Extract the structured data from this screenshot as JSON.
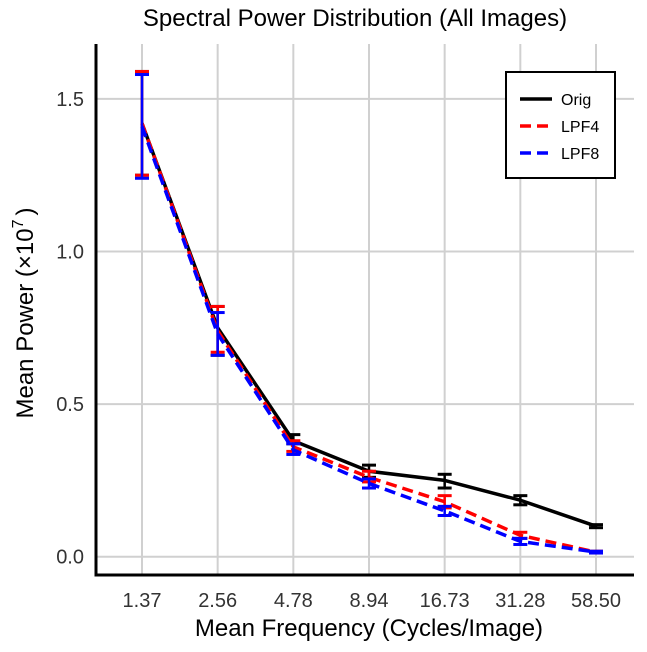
{
  "chart_data": {
    "type": "line",
    "title": "Spectral Power Distribution (All Images)",
    "xlabel": "Mean Frequency (Cycles/Image)",
    "ylabel_prefix": "Mean Power (×10",
    "ylabel_exponent": "7",
    "ylabel_suffix": ")",
    "categories": [
      "1.37",
      "2.56",
      "4.78",
      "8.94",
      "16.73",
      "31.28",
      "58.50"
    ],
    "ylim": [
      -0.06,
      1.68
    ],
    "yticks": [
      0.0,
      0.5,
      1.0,
      1.5
    ],
    "ytick_labels": [
      "0.0",
      "0.5",
      "1.0",
      "1.5"
    ],
    "grid": true,
    "legend_position": "top-right",
    "series": [
      {
        "name": "Orig",
        "color": "#000000",
        "dash": "solid",
        "values": [
          1.42,
          0.75,
          0.38,
          0.28,
          0.25,
          0.185,
          0.1
        ],
        "err_low": [
          1.25,
          0.66,
          0.37,
          0.26,
          0.225,
          0.17,
          0.095
        ],
        "err_high": [
          1.59,
          0.82,
          0.4,
          0.3,
          0.27,
          0.2,
          0.105
        ]
      },
      {
        "name": "LPF4",
        "color": "#ff0000",
        "dash": "dashed",
        "values": [
          1.42,
          0.74,
          0.36,
          0.26,
          0.18,
          0.07,
          0.015
        ],
        "err_low": [
          1.25,
          0.67,
          0.345,
          0.245,
          0.16,
          0.06,
          0.012
        ],
        "err_high": [
          1.59,
          0.82,
          0.38,
          0.28,
          0.2,
          0.08,
          0.018
        ]
      },
      {
        "name": "LPF8",
        "color": "#0000ff",
        "dash": "dashed",
        "values": [
          1.41,
          0.73,
          0.35,
          0.24,
          0.15,
          0.05,
          0.015
        ],
        "err_low": [
          1.24,
          0.66,
          0.335,
          0.225,
          0.135,
          0.04,
          0.012
        ],
        "err_high": [
          1.58,
          0.8,
          0.37,
          0.255,
          0.165,
          0.06,
          0.018
        ]
      }
    ]
  }
}
